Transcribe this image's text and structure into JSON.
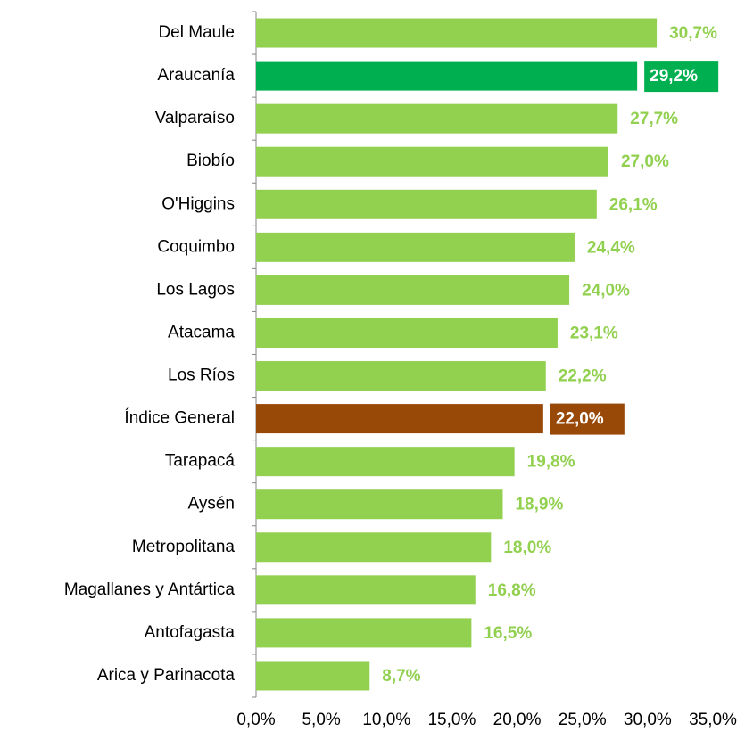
{
  "chart_data": {
    "type": "barh",
    "categories": [
      "Del Maule",
      "Araucanía",
      "Valparaíso",
      "Biobío",
      "O'Higgins",
      "Coquimbo",
      "Los Lagos",
      "Atacama",
      "Los Ríos",
      "Índice General",
      "Tarapacá",
      "Aysén",
      "Metropolitana",
      "Magallanes y Antártica",
      "Antofagasta",
      "Arica y Parinacota"
    ],
    "values": [
      30.7,
      29.2,
      27.7,
      27.0,
      26.1,
      24.4,
      24.0,
      23.1,
      22.2,
      22.0,
      19.8,
      18.9,
      18.0,
      16.8,
      16.5,
      8.7
    ],
    "value_labels": [
      "30,7%",
      "29,2%",
      "27,7%",
      "27,0%",
      "26,1%",
      "24,4%",
      "24,0%",
      "23,1%",
      "22,2%",
      "22,0%",
      "19,8%",
      "18,9%",
      "18,0%",
      "16,8%",
      "16,5%",
      "8,7%"
    ],
    "color": "#92d050",
    "colors": [
      "#92d050",
      "#00b050",
      "#92d050",
      "#92d050",
      "#92d050",
      "#92d050",
      "#92d050",
      "#92d050",
      "#92d050",
      "#984807",
      "#92d050",
      "#92d050",
      "#92d050",
      "#92d050",
      "#92d050",
      "#92d050"
    ],
    "xlim": [
      0,
      35
    ],
    "xticks": [
      {
        "value": 0,
        "label": "0,0%"
      },
      {
        "value": 5,
        "label": "5,0%"
      },
      {
        "value": 10,
        "label": "10,0%"
      },
      {
        "value": 15,
        "label": "15,0%"
      },
      {
        "value": 20,
        "label": "20,0%"
      },
      {
        "value": 25,
        "label": "25,0%"
      },
      {
        "value": 30,
        "label": "30,0%"
      },
      {
        "value": 35,
        "label": "35,0%"
      }
    ],
    "grid": false
  }
}
